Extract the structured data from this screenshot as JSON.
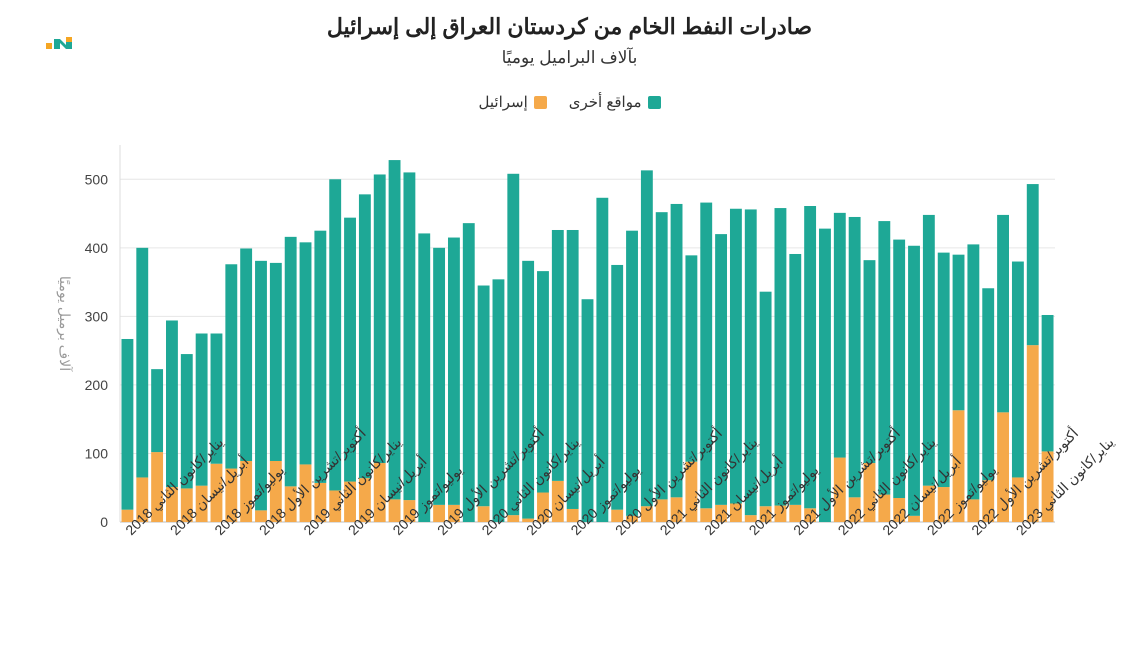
{
  "chart_data": {
    "type": "bar",
    "stacked": true,
    "title": "صادرات النفط الخام من كردستان العراق إلى إسرائيل",
    "subtitle": "بآلاف البراميل يوميًا",
    "ylabel": "آلاف برميل يوميًا",
    "ylim": [
      0,
      550
    ],
    "yticks": [
      0,
      100,
      200,
      300,
      400,
      500
    ],
    "legend_position": "top-center",
    "series": [
      {
        "name": "إسرائيل",
        "color": "#f5a94a",
        "values": [
          18,
          65,
          102,
          51,
          49,
          53,
          85,
          78,
          89,
          17,
          89,
          52,
          84,
          57,
          46,
          59,
          64,
          86,
          33,
          32,
          0,
          25,
          25,
          0,
          23,
          0,
          10,
          5,
          43,
          60,
          19,
          0,
          0,
          18,
          9,
          23,
          33,
          36,
          88,
          20,
          25,
          27,
          10,
          23,
          24,
          25,
          20,
          0,
          94,
          36,
          86,
          40,
          35,
          9,
          53,
          51,
          163,
          33,
          61,
          160,
          65,
          258,
          103
        ]
      },
      {
        "name": "مواقع أخرى",
        "color": "#1ea896",
        "values": [
          249,
          335,
          121,
          243,
          196,
          222,
          190,
          298,
          310,
          364,
          289,
          364,
          324,
          368,
          454,
          385,
          414,
          421,
          495,
          478,
          421,
          375,
          390,
          436,
          322,
          354,
          498,
          376,
          323,
          366,
          407,
          325,
          473,
          357,
          416,
          490,
          419,
          428,
          301,
          446,
          395,
          430,
          446,
          313,
          434,
          366,
          441,
          428,
          357,
          409,
          296,
          399,
          377,
          394,
          395,
          342,
          227,
          372,
          280,
          288,
          315,
          235,
          199
        ]
      }
    ],
    "x_labels": [
      {
        "index": 0,
        "text": "يناير/كانون الثاني 2018"
      },
      {
        "index": 3,
        "text": "أبريل/نيسان 2018"
      },
      {
        "index": 6,
        "text": "يوليو/تموز 2018"
      },
      {
        "index": 9,
        "text": "أكتوبر/تشرين الأول 2018"
      },
      {
        "index": 12,
        "text": "يناير/كانون الثاني 2019"
      },
      {
        "index": 15,
        "text": "أبريل/نيسان 2019"
      },
      {
        "index": 18,
        "text": "يوليو/تموز 2019"
      },
      {
        "index": 21,
        "text": "أكتوبر/تشرين الأول 2019"
      },
      {
        "index": 24,
        "text": "يناير/كانون الثاني 2020"
      },
      {
        "index": 27,
        "text": "أبريل/نيسان 2020"
      },
      {
        "index": 30,
        "text": "يوليو/تموز 2020"
      },
      {
        "index": 33,
        "text": "أكتوبر/تشرين الأول 2020"
      },
      {
        "index": 36,
        "text": "يناير/كانون الثاني 2021"
      },
      {
        "index": 39,
        "text": "أبريل/نيسان 2021"
      },
      {
        "index": 42,
        "text": "يوليو/تموز 2021"
      },
      {
        "index": 45,
        "text": "أكتوبر/تشرين الأول 2021"
      },
      {
        "index": 48,
        "text": "يناير/كانون الثاني 2022"
      },
      {
        "index": 51,
        "text": "أبريل/نيسان 2022"
      },
      {
        "index": 54,
        "text": "يوليو/تموز 2022"
      },
      {
        "index": 57,
        "text": "أكتوبر/تشرين الأول 2022"
      },
      {
        "index": 60,
        "text": "يناير/كانون الثاني 2023"
      }
    ]
  },
  "legend": {
    "other_label": "مواقع أخرى",
    "israel_label": "إسرائيل"
  },
  "colors": {
    "israel": "#f5a94a",
    "other": "#1ea896",
    "logo_orange": "#f5a623",
    "logo_teal": "#1ea896"
  }
}
